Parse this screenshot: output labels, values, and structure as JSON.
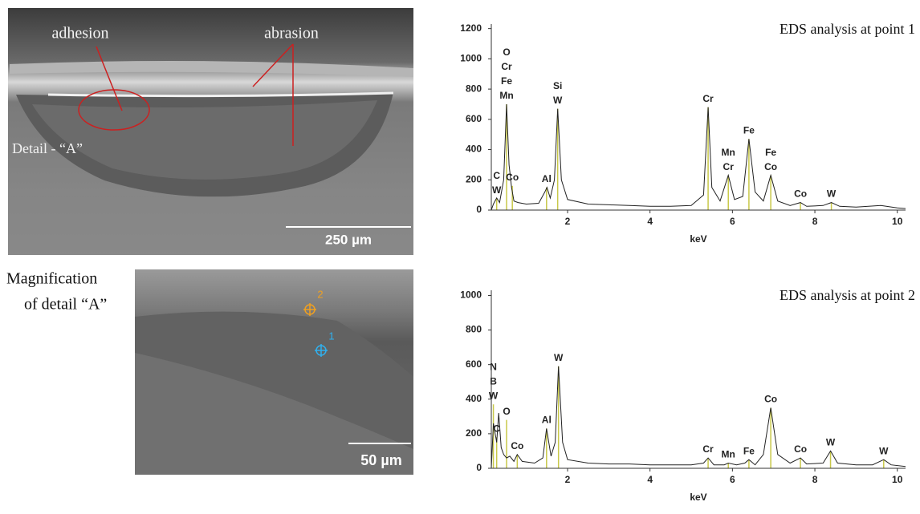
{
  "chart_data": [
    {
      "type": "line",
      "title": "EDS analysis at point 1",
      "xlabel": "keV",
      "color": "#222222",
      "peak_color": "#c8c84a",
      "x": [
        0.15,
        0.2,
        0.28,
        0.35,
        0.45,
        0.52,
        0.58,
        0.64,
        0.7,
        0.8,
        1.0,
        1.3,
        1.45,
        1.5,
        1.58,
        1.68,
        1.76,
        1.85,
        2.0,
        2.5,
        3.0,
        3.5,
        4.0,
        4.5,
        5.0,
        5.3,
        5.41,
        5.5,
        5.7,
        5.9,
        6.05,
        6.25,
        6.4,
        6.55,
        6.75,
        6.93,
        7.1,
        7.4,
        7.65,
        7.8,
        8.2,
        8.4,
        8.6,
        9.0,
        9.6,
        10.0,
        10.2
      ],
      "values": [
        0,
        40,
        80,
        50,
        200,
        700,
        300,
        150,
        60,
        50,
        40,
        45,
        120,
        150,
        80,
        200,
        670,
        200,
        70,
        40,
        35,
        30,
        25,
        25,
        30,
        100,
        680,
        150,
        60,
        230,
        70,
        90,
        470,
        120,
        60,
        230,
        60,
        30,
        50,
        25,
        30,
        50,
        25,
        20,
        30,
        15,
        10
      ],
      "peaks": [
        {
          "x": 0.28,
          "value": 75,
          "labels": [
            "C",
            "W"
          ]
        },
        {
          "x": 0.52,
          "value": 700,
          "labels": [
            "O",
            "Cr",
            "Fe",
            "Mn"
          ]
        },
        {
          "x": 0.66,
          "value": 160,
          "labels": [
            "Co"
          ]
        },
        {
          "x": 1.49,
          "value": 150,
          "labels": [
            "Al"
          ]
        },
        {
          "x": 1.76,
          "value": 670,
          "labels": [
            "Si",
            "W"
          ]
        },
        {
          "x": 5.41,
          "value": 680,
          "labels": [
            "Cr"
          ]
        },
        {
          "x": 5.9,
          "value": 230,
          "labels": [
            "Mn",
            "Cr"
          ]
        },
        {
          "x": 6.4,
          "value": 470,
          "labels": [
            "Fe"
          ]
        },
        {
          "x": 6.93,
          "value": 230,
          "labels": [
            "Fe",
            "Co"
          ]
        },
        {
          "x": 7.65,
          "value": 50,
          "labels": [
            "Co"
          ]
        },
        {
          "x": 8.4,
          "value": 50,
          "labels": [
            "W"
          ]
        }
      ],
      "xlim": [
        0.15,
        10.2
      ],
      "xticks": [
        2,
        4,
        6,
        8,
        10
      ],
      "ylim": [
        0,
        1230
      ],
      "yticks": [
        0,
        200,
        400,
        600,
        800,
        1000,
        1200
      ]
    },
    {
      "type": "line",
      "title": "EDS analysis at point 2",
      "xlabel": "keV",
      "color": "#222222",
      "peak_color": "#c8c84a",
      "x": [
        0.15,
        0.2,
        0.28,
        0.33,
        0.39,
        0.45,
        0.52,
        0.6,
        0.7,
        0.78,
        0.9,
        1.2,
        1.4,
        1.49,
        1.6,
        1.7,
        1.78,
        1.88,
        2.0,
        2.5,
        3,
        3.5,
        4,
        4.5,
        5.0,
        5.3,
        5.41,
        5.55,
        5.8,
        5.9,
        6.1,
        6.3,
        6.4,
        6.55,
        6.75,
        6.93,
        7.1,
        7.4,
        7.65,
        7.8,
        8.2,
        8.38,
        8.55,
        9.0,
        9.4,
        9.67,
        9.85,
        10.2
      ],
      "values": [
        0,
        260,
        150,
        320,
        120,
        80,
        60,
        70,
        40,
        80,
        40,
        30,
        60,
        230,
        70,
        150,
        590,
        150,
        50,
        30,
        25,
        25,
        20,
        20,
        20,
        30,
        60,
        20,
        20,
        30,
        20,
        30,
        50,
        20,
        80,
        350,
        80,
        30,
        60,
        25,
        30,
        100,
        30,
        20,
        20,
        50,
        20,
        10
      ],
      "peaks": [
        {
          "x": 0.2,
          "value": 370,
          "labels": [
            "N",
            "B",
            "W"
          ]
        },
        {
          "x": 0.28,
          "value": 180,
          "labels": [
            "C"
          ]
        },
        {
          "x": 0.52,
          "value": 280,
          "labels": [
            "O"
          ]
        },
        {
          "x": 0.78,
          "value": 80,
          "labels": [
            "Co"
          ]
        },
        {
          "x": 1.49,
          "value": 230,
          "labels": [
            "Al"
          ]
        },
        {
          "x": 1.78,
          "value": 590,
          "labels": [
            "W"
          ]
        },
        {
          "x": 5.41,
          "value": 60,
          "labels": [
            "Cr"
          ]
        },
        {
          "x": 5.9,
          "value": 30,
          "labels": [
            "Mn"
          ]
        },
        {
          "x": 6.4,
          "value": 50,
          "labels": [
            "Fe"
          ]
        },
        {
          "x": 6.93,
          "value": 350,
          "labels": [
            "Co"
          ]
        },
        {
          "x": 7.65,
          "value": 60,
          "labels": [
            "Co"
          ]
        },
        {
          "x": 8.38,
          "value": 100,
          "labels": [
            "W"
          ]
        },
        {
          "x": 9.67,
          "value": 50,
          "labels": [
            "W"
          ]
        }
      ],
      "xlim": [
        0.15,
        10.2
      ],
      "xticks": [
        2,
        4,
        6,
        8,
        10
      ],
      "ylim": [
        0,
        1030
      ],
      "yticks": [
        0,
        200,
        400,
        600,
        800,
        1000
      ]
    }
  ],
  "images": {
    "main": {
      "annotations": [
        "adhesion",
        "abrasion"
      ],
      "detail_label": "Detail - “A”",
      "scale_bar": "250 µm"
    },
    "magnified": {
      "caption": [
        "Magnification",
        "of detail “A”"
      ],
      "points": [
        "2",
        "1"
      ],
      "scale_bar": "50 µm"
    }
  }
}
